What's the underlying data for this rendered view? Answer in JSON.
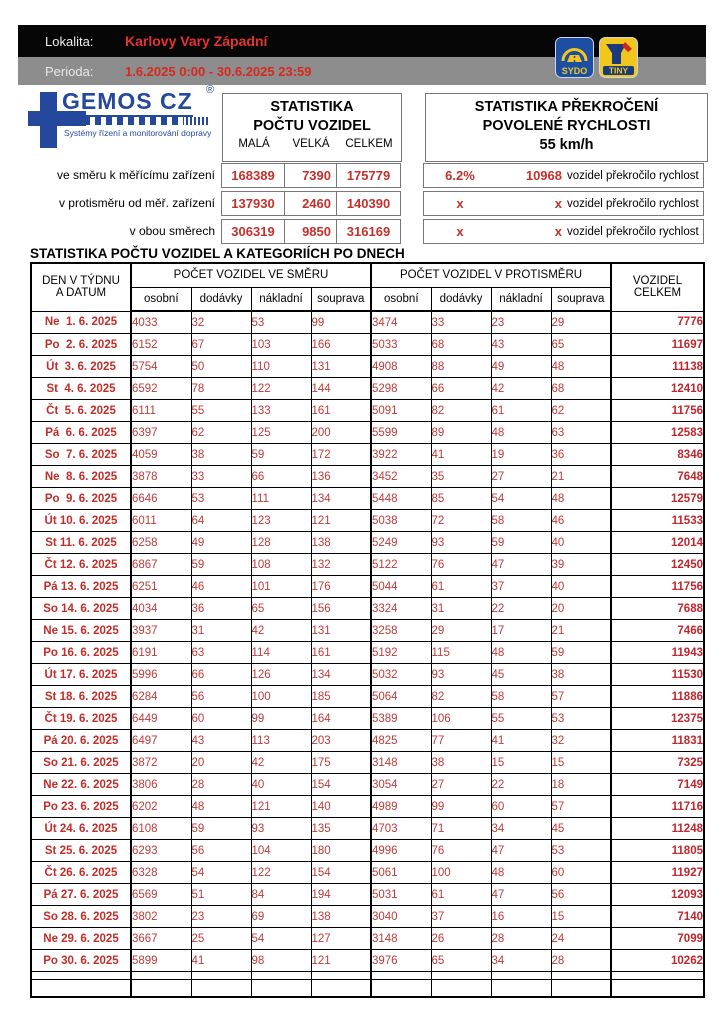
{
  "colors": {
    "brand_blue": "#24499c",
    "table_red": "#c5302b",
    "band_red": "#e5342b",
    "sydo_blue": "#1c4fa3",
    "badge_yellow": "#f2c71d"
  },
  "header": {
    "lokalita_label": "Lokalita:",
    "lokalita_value": "Karlovy Vary Západní",
    "perioda_label": "Perioda:",
    "perioda_value": "1.6.2025 0:00 - 30.6.2025 23:59",
    "sydo_badge": "SYDO",
    "tiny_badge": "TINY"
  },
  "brand": {
    "name": "GEMOS CZ",
    "reg": "®",
    "tagline": "Systémy řízení a monitorování dopravy"
  },
  "counts_panel": {
    "title_line1": "STATISTIKA",
    "title_line2": "POČTU VOZIDEL",
    "col_headers": [
      "MALÁ",
      "VELKÁ",
      "CELKEM"
    ],
    "rows": [
      {
        "label": "ve směru k měřícímu zařízení",
        "mala": "168389",
        "velka": "7390",
        "celkem": "175779"
      },
      {
        "label": "v protisměru od měř. zařízení",
        "mala": "137930",
        "velka": "2460",
        "celkem": "140390"
      },
      {
        "label": "v obou směrech",
        "mala": "306319",
        "velka": "9850",
        "celkem": "316169"
      }
    ]
  },
  "speed_panel": {
    "title_line1": "STATISTIKA PŘEKROČENÍ",
    "title_line2": "POVOLENÉ RYCHLOSTI",
    "title_line3": "55 km/h",
    "rows": [
      {
        "percent": "6.2%",
        "count": "10968",
        "label": "vozidel překročilo rychlost"
      },
      {
        "percent": "x",
        "count": "x",
        "label": "vozidel překročilo rychlost"
      },
      {
        "percent": "x",
        "count": "x",
        "label": "vozidel překročilo rychlost"
      }
    ]
  },
  "daily_table": {
    "title": "STATISTIKA POČTU VOZIDEL A KATEGORIÍCH PO DNECH",
    "col1_line1": "DEN V TÝDNU",
    "col1_line2": "A DATUM",
    "group1_header": "POČET VOZIDEL VE SMĚRU",
    "group2_header": "POČET VOZIDEL V PROTISMĚRU",
    "sub_headers": [
      "osobní",
      "dodávky",
      "nákladní",
      "souprava"
    ],
    "total_line1": "VOZIDEL",
    "total_line2": "CELKEM",
    "rows": [
      {
        "date": "Ne  1. 6. 2025",
        "cells": [
          "4033",
          "32",
          "53",
          "99",
          "3474",
          "33",
          "23",
          "29"
        ],
        "total": "7776"
      },
      {
        "date": "Po  2. 6. 2025",
        "cells": [
          "6152",
          "67",
          "103",
          "166",
          "5033",
          "68",
          "43",
          "65"
        ],
        "total": "11697"
      },
      {
        "date": "Út  3. 6. 2025",
        "cells": [
          "5754",
          "50",
          "110",
          "131",
          "4908",
          "88",
          "49",
          "48"
        ],
        "total": "11138"
      },
      {
        "date": "St  4. 6. 2025",
        "cells": [
          "6592",
          "78",
          "122",
          "144",
          "5298",
          "66",
          "42",
          "68"
        ],
        "total": "12410"
      },
      {
        "date": "Čt  5. 6. 2025",
        "cells": [
          "6111",
          "55",
          "133",
          "161",
          "5091",
          "82",
          "61",
          "62"
        ],
        "total": "11756"
      },
      {
        "date": "Pá  6. 6. 2025",
        "cells": [
          "6397",
          "62",
          "125",
          "200",
          "5599",
          "89",
          "48",
          "63"
        ],
        "total": "12583"
      },
      {
        "date": "So  7. 6. 2025",
        "cells": [
          "4059",
          "38",
          "59",
          "172",
          "3922",
          "41",
          "19",
          "36"
        ],
        "total": "8346"
      },
      {
        "date": "Ne  8. 6. 2025",
        "cells": [
          "3878",
          "33",
          "66",
          "136",
          "3452",
          "35",
          "27",
          "21"
        ],
        "total": "7648"
      },
      {
        "date": "Po  9. 6. 2025",
        "cells": [
          "6646",
          "53",
          "111",
          "134",
          "5448",
          "85",
          "54",
          "48"
        ],
        "total": "12579"
      },
      {
        "date": "Út 10. 6. 2025",
        "cells": [
          "6011",
          "64",
          "123",
          "121",
          "5038",
          "72",
          "58",
          "46"
        ],
        "total": "11533"
      },
      {
        "date": "St 11. 6. 2025",
        "cells": [
          "6258",
          "49",
          "128",
          "138",
          "5249",
          "93",
          "59",
          "40"
        ],
        "total": "12014"
      },
      {
        "date": "Čt 12. 6. 2025",
        "cells": [
          "6867",
          "59",
          "108",
          "132",
          "5122",
          "76",
          "47",
          "39"
        ],
        "total": "12450"
      },
      {
        "date": "Pá 13. 6. 2025",
        "cells": [
          "6251",
          "46",
          "101",
          "176",
          "5044",
          "61",
          "37",
          "40"
        ],
        "total": "11756"
      },
      {
        "date": "So 14. 6. 2025",
        "cells": [
          "4034",
          "36",
          "65",
          "156",
          "3324",
          "31",
          "22",
          "20"
        ],
        "total": "7688"
      },
      {
        "date": "Ne 15. 6. 2025",
        "cells": [
          "3937",
          "31",
          "42",
          "131",
          "3258",
          "29",
          "17",
          "21"
        ],
        "total": "7466"
      },
      {
        "date": "Po 16. 6. 2025",
        "cells": [
          "6191",
          "63",
          "114",
          "161",
          "5192",
          "115",
          "48",
          "59"
        ],
        "total": "11943"
      },
      {
        "date": "Út 17. 6. 2025",
        "cells": [
          "5996",
          "66",
          "126",
          "134",
          "5032",
          "93",
          "45",
          "38"
        ],
        "total": "11530"
      },
      {
        "date": "St 18. 6. 2025",
        "cells": [
          "6284",
          "56",
          "100",
          "185",
          "5064",
          "82",
          "58",
          "57"
        ],
        "total": "11886"
      },
      {
        "date": "Čt 19. 6. 2025",
        "cells": [
          "6449",
          "60",
          "99",
          "164",
          "5389",
          "106",
          "55",
          "53"
        ],
        "total": "12375"
      },
      {
        "date": "Pá 20. 6. 2025",
        "cells": [
          "6497",
          "43",
          "113",
          "203",
          "4825",
          "77",
          "41",
          "32"
        ],
        "total": "11831"
      },
      {
        "date": "So 21. 6. 2025",
        "cells": [
          "3872",
          "20",
          "42",
          "175",
          "3148",
          "38",
          "15",
          "15"
        ],
        "total": "7325"
      },
      {
        "date": "Ne 22. 6. 2025",
        "cells": [
          "3806",
          "28",
          "40",
          "154",
          "3054",
          "27",
          "22",
          "18"
        ],
        "total": "7149"
      },
      {
        "date": "Po 23. 6. 2025",
        "cells": [
          "6202",
          "48",
          "121",
          "140",
          "4989",
          "99",
          "60",
          "57"
        ],
        "total": "11716"
      },
      {
        "date": "Út 24. 6. 2025",
        "cells": [
          "6108",
          "59",
          "93",
          "135",
          "4703",
          "71",
          "34",
          "45"
        ],
        "total": "11248"
      },
      {
        "date": "St 25. 6. 2025",
        "cells": [
          "6293",
          "56",
          "104",
          "180",
          "4996",
          "76",
          "47",
          "53"
        ],
        "total": "11805"
      },
      {
        "date": "Čt 26. 6. 2025",
        "cells": [
          "6328",
          "54",
          "122",
          "154",
          "5061",
          "100",
          "48",
          "60"
        ],
        "total": "11927"
      },
      {
        "date": "Pá 27. 6. 2025",
        "cells": [
          "6569",
          "51",
          "84",
          "194",
          "5031",
          "61",
          "47",
          "56"
        ],
        "total": "12093"
      },
      {
        "date": "So 28. 6. 2025",
        "cells": [
          "3802",
          "23",
          "69",
          "138",
          "3040",
          "37",
          "16",
          "15"
        ],
        "total": "7140"
      },
      {
        "date": "Ne 29. 6. 2025",
        "cells": [
          "3667",
          "25",
          "54",
          "127",
          "3148",
          "26",
          "28",
          "24"
        ],
        "total": "7099"
      },
      {
        "date": "Po 30. 6. 2025",
        "cells": [
          "5899",
          "41",
          "98",
          "121",
          "3976",
          "65",
          "34",
          "28"
        ],
        "total": "10262"
      }
    ]
  }
}
